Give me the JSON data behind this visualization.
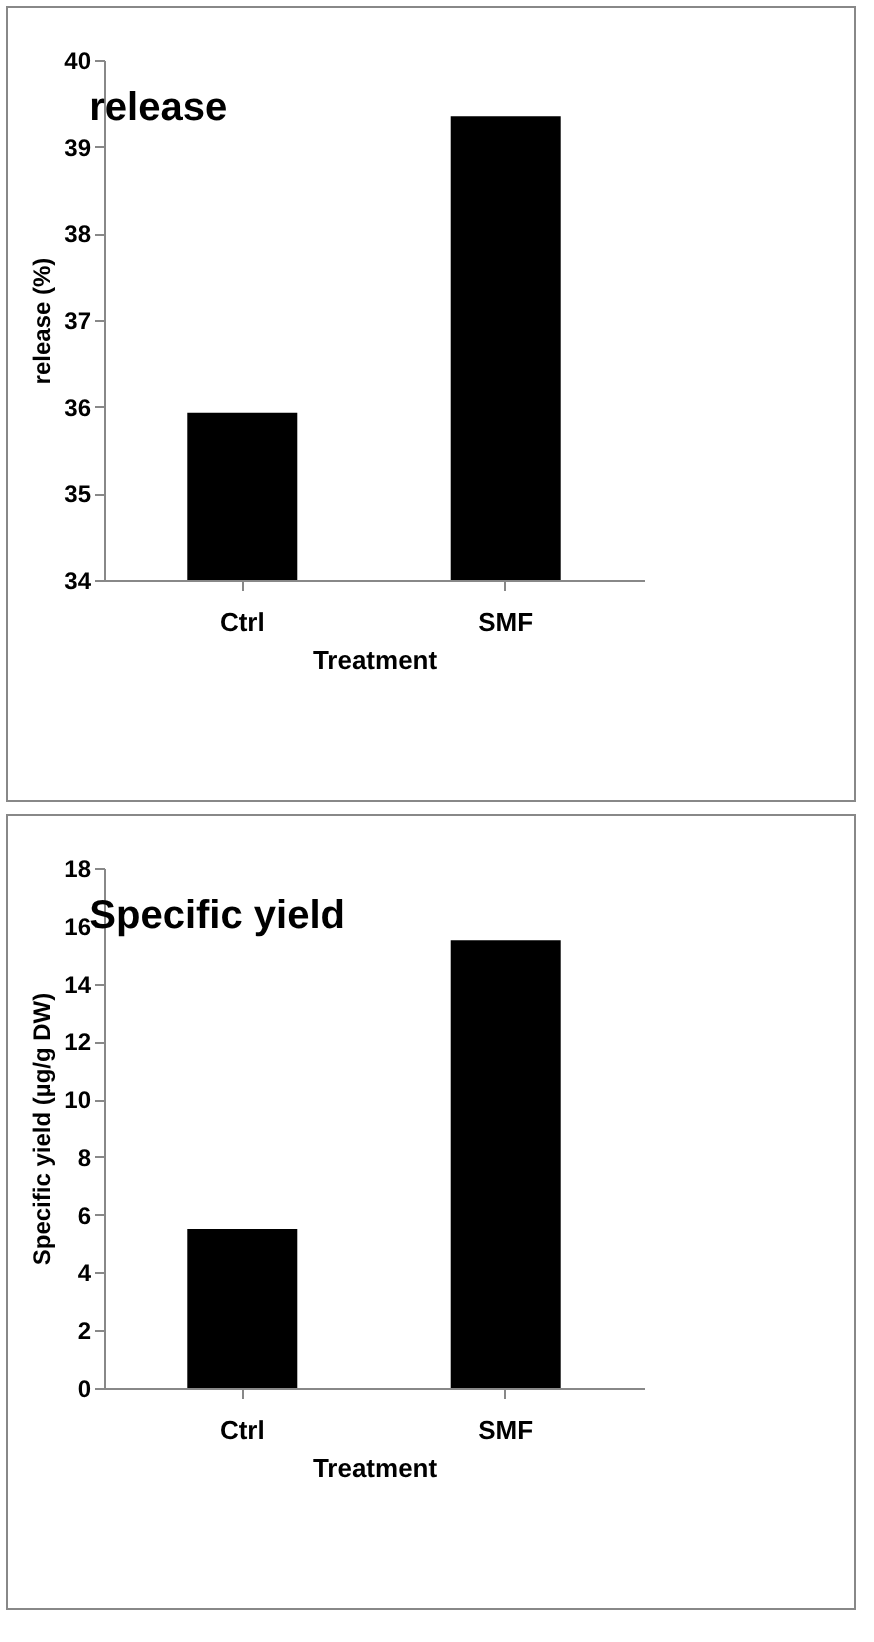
{
  "chart_data": [
    {
      "type": "bar",
      "title": "release",
      "xlabel": "Treatment",
      "ylabel": "release (%)",
      "categories": [
        "Ctrl",
        "SMF"
      ],
      "values": [
        35.93,
        39.35
      ],
      "color": "#000000",
      "ylim": [
        34,
        40
      ],
      "yticks": [
        34,
        35,
        36,
        37,
        38,
        39,
        40
      ],
      "grid": false,
      "legend": false
    },
    {
      "type": "bar",
      "title": "Specific yield",
      "xlabel": "Treatment",
      "ylabel": "Specific yield (µg/g DW)",
      "categories": [
        "Ctrl",
        "SMF"
      ],
      "values": [
        5.5,
        15.5
      ],
      "color": "#000000",
      "ylim": [
        0,
        18
      ],
      "yticks": [
        0,
        2,
        4,
        6,
        8,
        10,
        12,
        14,
        16,
        18
      ],
      "grid": false,
      "legend": false
    }
  ]
}
